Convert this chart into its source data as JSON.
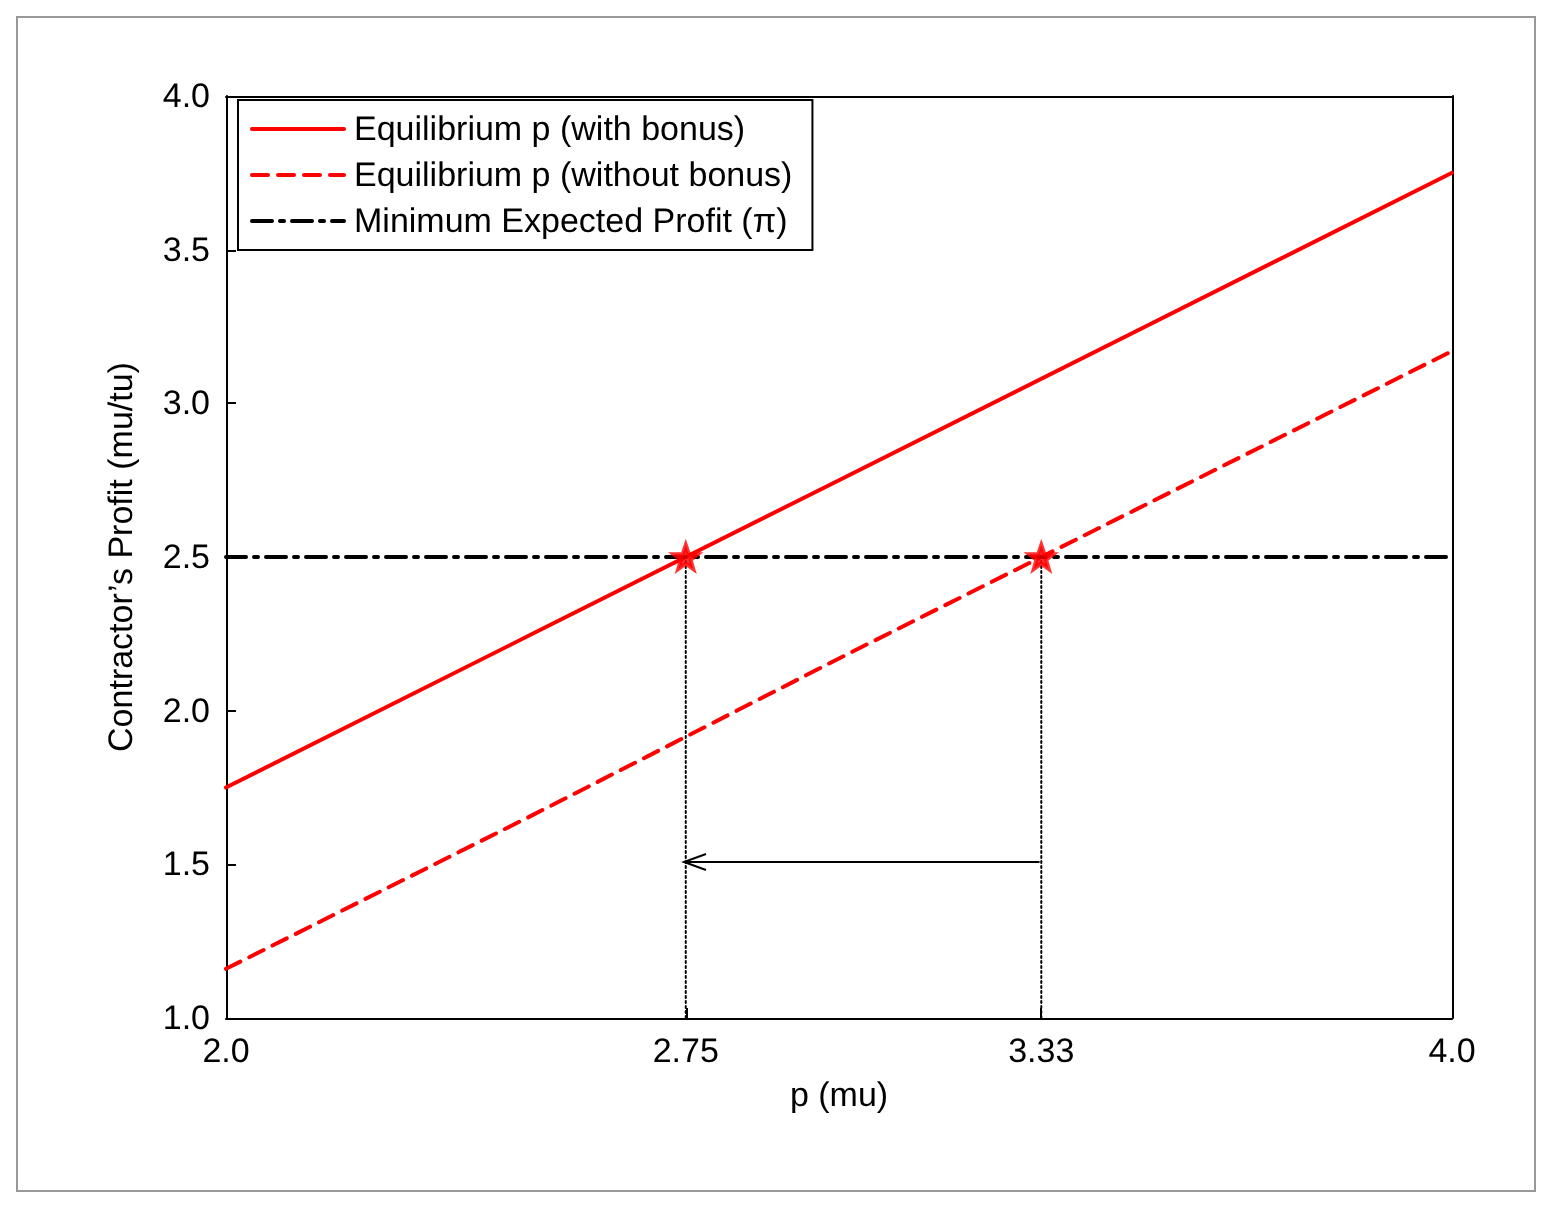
{
  "chart_data": {
    "type": "line",
    "xlabel": "p (mu)",
    "ylabel": "Contractor’s Profit (mu/tu)",
    "x": [
      2,
      2.5,
      3,
      3.5,
      4
    ],
    "series": [
      {
        "name": "Equilibrium p (with bonus)",
        "color": "#ff0000",
        "values": [
          1.75,
          2.25,
          2.75,
          3.25,
          3.75
        ],
        "line_style": "solid"
      },
      {
        "name": "Equilibrium p (without bonus)",
        "color": "#ff0000",
        "values": [
          1.16,
          1.66,
          2.17,
          2.67,
          3.17
        ],
        "line_style": "dashed"
      },
      {
        "name": "Minimum Expected Profit (π)",
        "color": "#000000",
        "x": [
          2,
          4
        ],
        "values": [
          2.5,
          2.5
        ],
        "line_style": "dashdot"
      },
      {
        "type": "line",
        "color": "#000000",
        "x": [
          2.75,
          2.75
        ],
        "values": [
          1,
          2.5
        ],
        "line_style": "dotted"
      },
      {
        "type": "line",
        "color": "#000000",
        "x": [
          3.33,
          3.33
        ],
        "values": [
          1,
          2.5
        ],
        "line_style": "dotted"
      },
      {
        "type": "scatter",
        "color": "#ff0000",
        "x": [
          2.75,
          3.33
        ],
        "values": [
          2.5,
          2.5
        ],
        "marker": "star"
      }
    ],
    "xlim": [
      2,
      4
    ],
    "xticks": [
      {
        "value": 2,
        "label": "2.0"
      },
      2.75,
      3.33,
      {
        "value": 4,
        "label": "4.0"
      }
    ],
    "ylim": [
      1,
      4
    ],
    "yticks": [
      {
        "value": 1,
        "label": "1.0"
      },
      1.5,
      {
        "value": 2,
        "label": "2.0"
      },
      2.5,
      {
        "value": 3,
        "label": "3.0"
      },
      3.5,
      {
        "value": 4,
        "label": "4.0"
      }
    ],
    "grid": false,
    "legend": "top left"
  }
}
